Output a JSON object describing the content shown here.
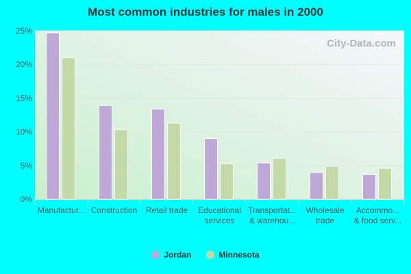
{
  "chart_data": {
    "type": "bar",
    "title": "Most common industries for males in 2000",
    "categories": [
      [
        "Manufactur..."
      ],
      [
        "Construction"
      ],
      [
        "Retail trade"
      ],
      [
        "Educational",
        "services"
      ],
      [
        "Transportat...",
        "& warehou..."
      ],
      [
        "Wholesale",
        "trade"
      ],
      [
        "Accommo...",
        "& food serv..."
      ]
    ],
    "series": [
      {
        "name": "Jordan",
        "color": "#bea8d8",
        "values": [
          24.7,
          13.9,
          13.4,
          9.0,
          5.4,
          4.0,
          3.7
        ]
      },
      {
        "name": "Minnesota",
        "color": "#c4d9a8",
        "values": [
          21.0,
          10.3,
          11.3,
          5.3,
          6.1,
          4.9,
          4.6
        ]
      }
    ],
    "yticks": [
      "0%",
      "5%",
      "10%",
      "15%",
      "20%",
      "25%"
    ],
    "ylim": [
      0,
      25
    ],
    "grid": true,
    "legend": "bottom",
    "watermark": "City-Data.com"
  }
}
